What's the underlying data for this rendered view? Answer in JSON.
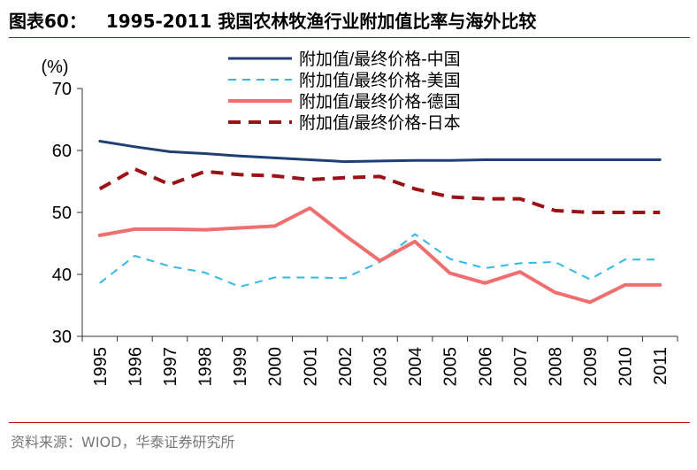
{
  "header": {
    "figure_label": "图表60：",
    "title": "1995-2011 我国农林牧渔行业附加值比率与海外比较"
  },
  "source": "资料来源：WIOD，华泰证券研究所",
  "chart_data": {
    "type": "line",
    "title": "1995-2011 我国农林牧渔行业附加值比率与海外比较",
    "ylabel": "(%)",
    "xlabel": "",
    "ylim": [
      30,
      70
    ],
    "yticks": [
      30,
      40,
      50,
      60,
      70
    ],
    "categories": [
      "1995",
      "1996",
      "1997",
      "1998",
      "1999",
      "2000",
      "2001",
      "2002",
      "2003",
      "2004",
      "2005",
      "2006",
      "2007",
      "2008",
      "2009",
      "2010",
      "2011"
    ],
    "legend_position": "top-center",
    "series": [
      {
        "name": "附加值/最终价格-中国",
        "color": "#1f3f75",
        "style": "solid",
        "width": 3,
        "values": [
          61.5,
          60.6,
          59.8,
          59.5,
          59.1,
          58.8,
          58.5,
          58.2,
          58.3,
          58.4,
          58.4,
          58.5,
          58.5,
          58.5,
          58.5,
          58.5,
          58.5
        ]
      },
      {
        "name": "附加值/最终价格-美国",
        "color": "#35b8e8",
        "style": "dashed",
        "width": 2,
        "values": [
          38.6,
          43.0,
          41.3,
          40.3,
          38.0,
          39.5,
          39.5,
          39.4,
          42.0,
          46.5,
          42.5,
          41.0,
          41.8,
          42.0,
          39.2,
          42.4,
          42.4
        ]
      },
      {
        "name": "附加值/最终价格-德国",
        "color": "#f06e6e",
        "style": "solid",
        "width": 4,
        "values": [
          46.3,
          47.3,
          47.3,
          47.2,
          47.5,
          47.8,
          50.7,
          46.3,
          42.2,
          45.3,
          40.2,
          38.6,
          40.4,
          37.1,
          35.5,
          38.3,
          38.3
        ]
      },
      {
        "name": "附加值/最终价格-日本",
        "color": "#9b1116",
        "style": "dashed",
        "width": 4,
        "values": [
          53.8,
          57.0,
          54.5,
          56.6,
          56.1,
          55.9,
          55.3,
          55.6,
          55.8,
          53.8,
          52.5,
          52.2,
          52.2,
          50.3,
          50.0,
          50.0,
          50.0
        ]
      }
    ]
  }
}
